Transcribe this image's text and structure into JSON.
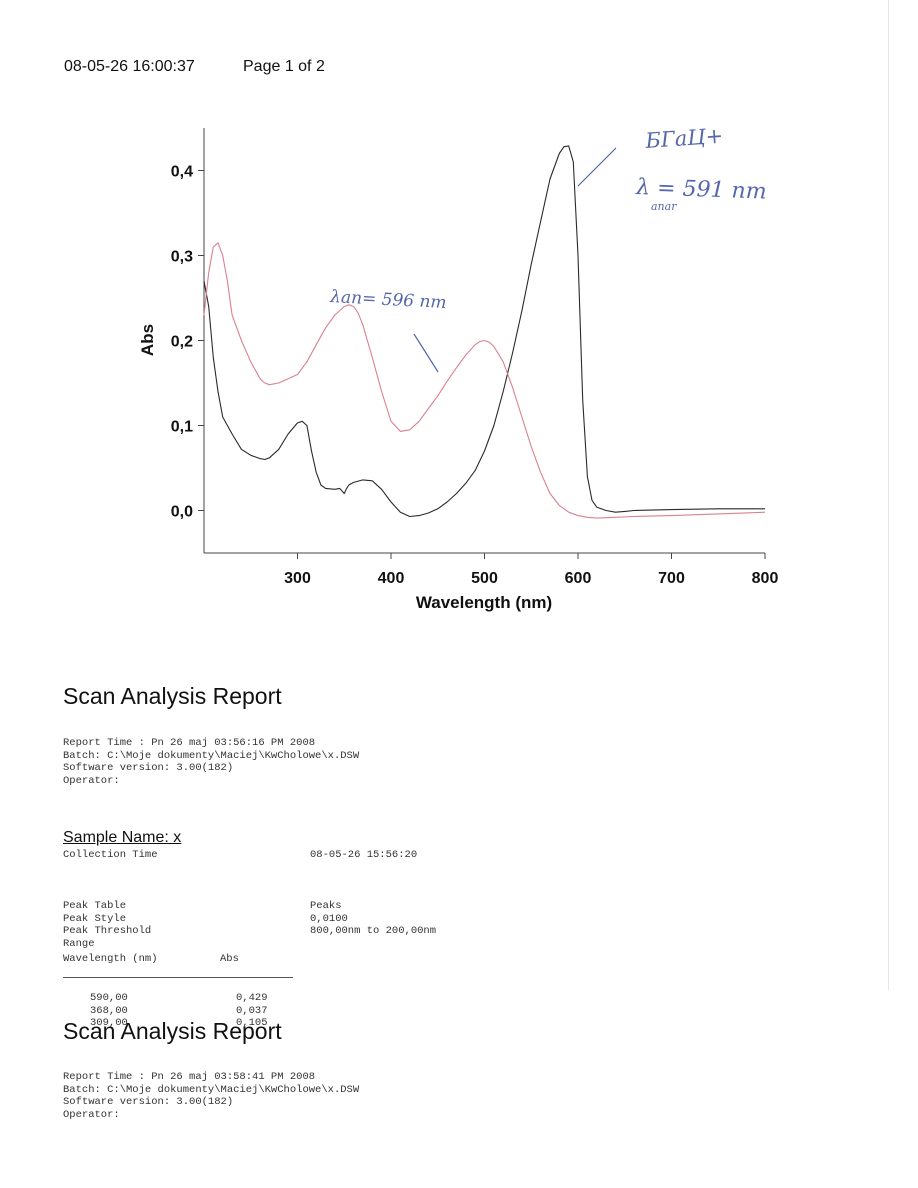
{
  "header": {
    "datetime": "08-05-26 16:00:37",
    "page": "Page 1 of 2"
  },
  "chart_data": {
    "type": "line",
    "title": "",
    "xlabel": "Wavelength (nm)",
    "ylabel": "Abs",
    "xlim": [
      200,
      800
    ],
    "ylim": [
      -0.05,
      0.45
    ],
    "xticks": [
      "300",
      "400",
      "500",
      "600",
      "700",
      "800"
    ],
    "yticks": [
      "0,0",
      "0,1",
      "0,2",
      "0,3",
      "0,4"
    ],
    "ytick_values": [
      0.0,
      0.1,
      0.2,
      0.3,
      0.4
    ],
    "xtick_values": [
      300,
      400,
      500,
      600,
      700,
      800
    ],
    "grid": false,
    "series": [
      {
        "color": "#2a2a2a",
        "x": [
          200,
          205,
          210,
          215,
          220,
          230,
          240,
          250,
          260,
          265,
          270,
          280,
          290,
          300,
          305,
          310,
          315,
          320,
          325,
          330,
          340,
          345,
          350,
          352,
          355,
          360,
          370,
          380,
          390,
          400,
          410,
          420,
          430,
          440,
          450,
          460,
          470,
          480,
          490,
          500,
          510,
          520,
          530,
          540,
          550,
          560,
          570,
          580,
          585,
          590,
          595,
          600,
          605,
          610,
          615,
          620,
          630,
          640,
          650,
          660,
          700,
          750,
          800
        ],
        "y": [
          0.27,
          0.24,
          0.18,
          0.14,
          0.11,
          0.09,
          0.072,
          0.065,
          0.061,
          0.06,
          0.062,
          0.072,
          0.09,
          0.103,
          0.105,
          0.1,
          0.07,
          0.045,
          0.03,
          0.026,
          0.025,
          0.026,
          0.02,
          0.025,
          0.03,
          0.033,
          0.036,
          0.035,
          0.025,
          0.01,
          -0.002,
          -0.007,
          -0.006,
          -0.003,
          0.002,
          0.01,
          0.02,
          0.032,
          0.047,
          0.07,
          0.1,
          0.14,
          0.185,
          0.235,
          0.29,
          0.34,
          0.39,
          0.42,
          0.428,
          0.429,
          0.41,
          0.3,
          0.13,
          0.04,
          0.012,
          0.004,
          0.0,
          -0.002,
          -0.001,
          0.0,
          0.001,
          0.002,
          0.002
        ]
      },
      {
        "color": "#d9828f",
        "x": [
          200,
          205,
          210,
          215,
          220,
          225,
          230,
          240,
          250,
          260,
          265,
          270,
          280,
          290,
          300,
          310,
          320,
          330,
          340,
          350,
          355,
          360,
          365,
          370,
          380,
          390,
          400,
          410,
          420,
          430,
          440,
          450,
          460,
          470,
          480,
          490,
          495,
          500,
          505,
          510,
          520,
          530,
          540,
          550,
          560,
          570,
          580,
          590,
          600,
          610,
          620,
          640,
          660,
          700,
          750,
          800
        ],
        "y": [
          0.23,
          0.28,
          0.31,
          0.315,
          0.3,
          0.27,
          0.23,
          0.2,
          0.175,
          0.155,
          0.15,
          0.148,
          0.15,
          0.155,
          0.16,
          0.175,
          0.195,
          0.215,
          0.23,
          0.24,
          0.242,
          0.24,
          0.232,
          0.218,
          0.18,
          0.14,
          0.105,
          0.093,
          0.095,
          0.105,
          0.12,
          0.135,
          0.152,
          0.168,
          0.183,
          0.195,
          0.199,
          0.2,
          0.198,
          0.193,
          0.175,
          0.145,
          0.11,
          0.075,
          0.045,
          0.02,
          0.006,
          -0.002,
          -0.006,
          -0.008,
          -0.009,
          -0.008,
          -0.007,
          -0.006,
          -0.004,
          -0.002
        ]
      }
    ],
    "annotations": [
      "λan= 596 nm",
      "БГаЦ+",
      "λ = 591 nm",
      "аnаr"
    ]
  },
  "report1": {
    "title": "Scan Analysis Report",
    "lines": [
      "Report Time : Pn 26 maj 03:56:16 PM 2008",
      "Batch: C:\\Moje dokumenty\\Maciej\\KwCholowe\\x.DSW",
      "Software version: 3.00(182)",
      "Operator:"
    ]
  },
  "sample": {
    "name": "Sample Name: x",
    "collection_label": "Collection Time",
    "collection_value": "08-05-26 15:56:20",
    "params": [
      {
        "label": "Peak Table",
        "value": ""
      },
      {
        "label": "Peak Style",
        "value": "Peaks"
      },
      {
        "label": "Peak Threshold",
        "value": "0,0100"
      },
      {
        "label": "Range",
        "value": "800,00nm to 200,00nm"
      }
    ],
    "table": {
      "headers": [
        "Wavelength (nm)",
        "Abs"
      ],
      "rows": [
        [
          "590,00",
          "0,429"
        ],
        [
          "368,00",
          "0,037"
        ],
        [
          "309,00",
          "0,105"
        ]
      ]
    }
  },
  "report2": {
    "title": "Scan Analysis Report",
    "lines": [
      "Report Time : Pn 26 maj 03:58:41 PM 2008",
      "Batch: C:\\Moje dokumenty\\Maciej\\KwCholowe\\x.DSW",
      "Software version: 3.00(182)",
      "Operator:"
    ]
  }
}
